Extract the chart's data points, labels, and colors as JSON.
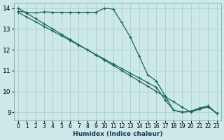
{
  "xlabel": "Humidex (Indice chaleur)",
  "bg_color": "#cce8e8",
  "grid_color": "#aacece",
  "line_color": "#1a6655",
  "xmin": -0.5,
  "xmax": 23.5,
  "ymin": 8.6,
  "ymax": 14.25,
  "yticks": [
    9,
    10,
    11,
    12,
    13,
    14
  ],
  "xticks": [
    0,
    1,
    2,
    3,
    4,
    5,
    6,
    7,
    8,
    9,
    10,
    11,
    12,
    13,
    14,
    15,
    16,
    17,
    18,
    19,
    20,
    21,
    22,
    23
  ],
  "line1_x": [
    0,
    1,
    2,
    3,
    4,
    5,
    6,
    7,
    8,
    9,
    10,
    11,
    12,
    13,
    14,
    15,
    16,
    17,
    18,
    19,
    20,
    21,
    22,
    23
  ],
  "line1_y": [
    13.85,
    13.8,
    13.77,
    13.82,
    13.8,
    13.8,
    13.8,
    13.8,
    13.8,
    13.8,
    14.0,
    13.95,
    13.3,
    12.6,
    11.7,
    10.8,
    10.5,
    9.8,
    9.1,
    9.0,
    9.05,
    9.2,
    9.3,
    8.95
  ],
  "line2_x": [
    0,
    1,
    2,
    3,
    4,
    5,
    6,
    7,
    8,
    9,
    10,
    11,
    12,
    13,
    14,
    15,
    16,
    17,
    18,
    19,
    20,
    21,
    22,
    23
  ],
  "line2_y": [
    14.0,
    13.75,
    13.5,
    13.25,
    13.0,
    12.75,
    12.5,
    12.25,
    12.0,
    11.75,
    11.5,
    11.25,
    11.0,
    10.75,
    10.5,
    10.25,
    10.0,
    9.75,
    9.5,
    9.25,
    9.0,
    9.15,
    9.25,
    8.95
  ],
  "line3_x": [
    0,
    1,
    2,
    3,
    4,
    5,
    6,
    7,
    8,
    9,
    10,
    11,
    12,
    13,
    14,
    15,
    16,
    17,
    18,
    19,
    20,
    21,
    22,
    23
  ],
  "line3_y": [
    13.8,
    13.57,
    13.35,
    13.12,
    12.9,
    12.67,
    12.45,
    12.22,
    12.0,
    11.77,
    11.55,
    11.32,
    11.1,
    10.87,
    10.65,
    10.42,
    10.2,
    9.6,
    9.1,
    9.0,
    9.05,
    9.2,
    9.3,
    8.95
  ]
}
